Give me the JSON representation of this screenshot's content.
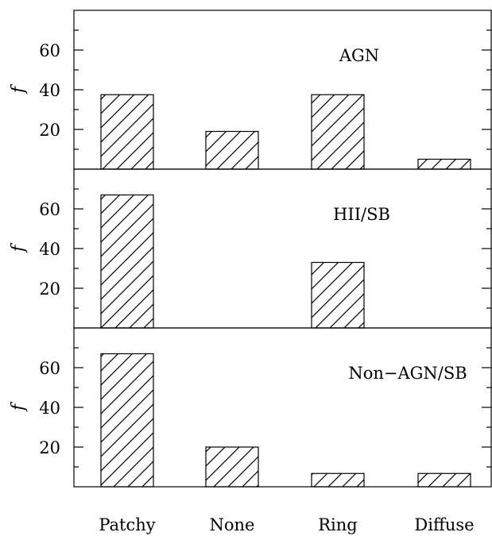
{
  "chart_data": [
    {
      "type": "bar",
      "panel_label": "AGN",
      "ylabel": "f",
      "categories": [
        "Patchy",
        "None",
        "Ring",
        "Diffuse"
      ],
      "values": [
        37.5,
        19,
        37.5,
        5
      ],
      "ylim": [
        0,
        80
      ],
      "yticks": [
        20,
        40,
        60
      ],
      "yticks_labeled": [
        "20",
        "40",
        "60"
      ],
      "fill": "diagonal-hatch"
    },
    {
      "type": "bar",
      "panel_label": "HII/SB",
      "ylabel": "f",
      "categories": [
        "Patchy",
        "None",
        "Ring",
        "Diffuse"
      ],
      "values": [
        67,
        0,
        33,
        0
      ],
      "ylim": [
        0,
        80
      ],
      "yticks": [
        20,
        40,
        60
      ],
      "yticks_labeled": [
        "20",
        "40",
        "60"
      ],
      "fill": "diagonal-hatch"
    },
    {
      "type": "bar",
      "panel_label": "Non−AGN/SB",
      "ylabel": "f",
      "categories": [
        "Patchy",
        "None",
        "Ring",
        "Diffuse"
      ],
      "values": [
        67,
        20,
        6.7,
        6.7
      ],
      "ylim": [
        0,
        80
      ],
      "yticks": [
        20,
        40,
        60
      ],
      "yticks_labeled": [
        "20",
        "40",
        "60"
      ],
      "fill": "diagonal-hatch"
    }
  ],
  "x_categories_shared": [
    "Patchy",
    "None",
    "Ring",
    "Diffuse"
  ],
  "colors": {
    "axes": "#000000",
    "bar_edge": "#000000",
    "hatch": "#000000",
    "background": "#ffffff"
  }
}
